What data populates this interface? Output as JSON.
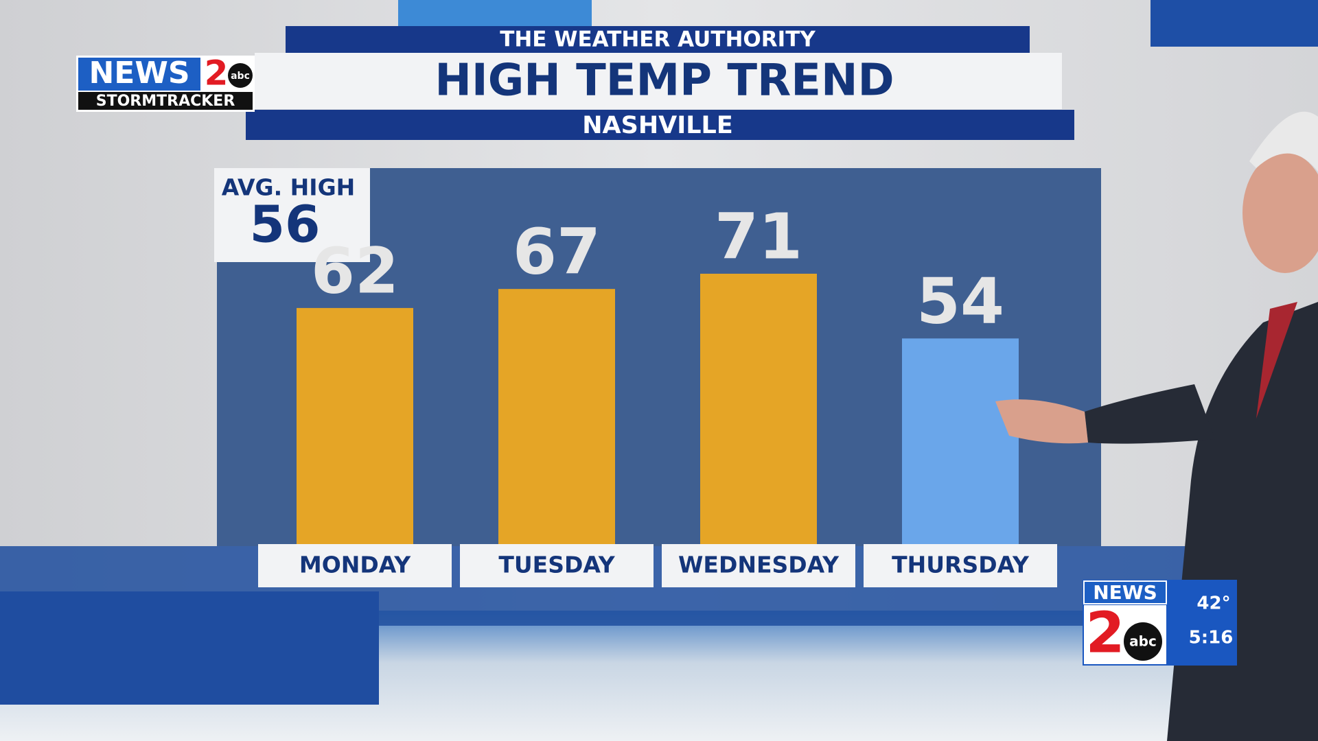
{
  "header": {
    "banner": "THE WEATHER AUTHORITY",
    "location": "NASHVILLE"
  },
  "logo": {
    "brand": "NEWS",
    "number": "2",
    "network": "abc",
    "tagline": "STORMTRACKER"
  },
  "bug": {
    "brand": "NEWS",
    "number": "2",
    "network": "abc",
    "temperature": "42°",
    "time": "5:16"
  },
  "chart_data": {
    "type": "bar",
    "title": "HIGH TEMP TREND",
    "categories": [
      "MONDAY",
      "TUESDAY",
      "WEDNESDAY",
      "THURSDAY"
    ],
    "values": [
      62,
      67,
      71,
      54
    ],
    "colors": [
      "#e5a526",
      "#e5a526",
      "#e5a526",
      "#6aa6ea"
    ],
    "reference": {
      "label": "AVG. HIGH",
      "value": 56
    }
  }
}
